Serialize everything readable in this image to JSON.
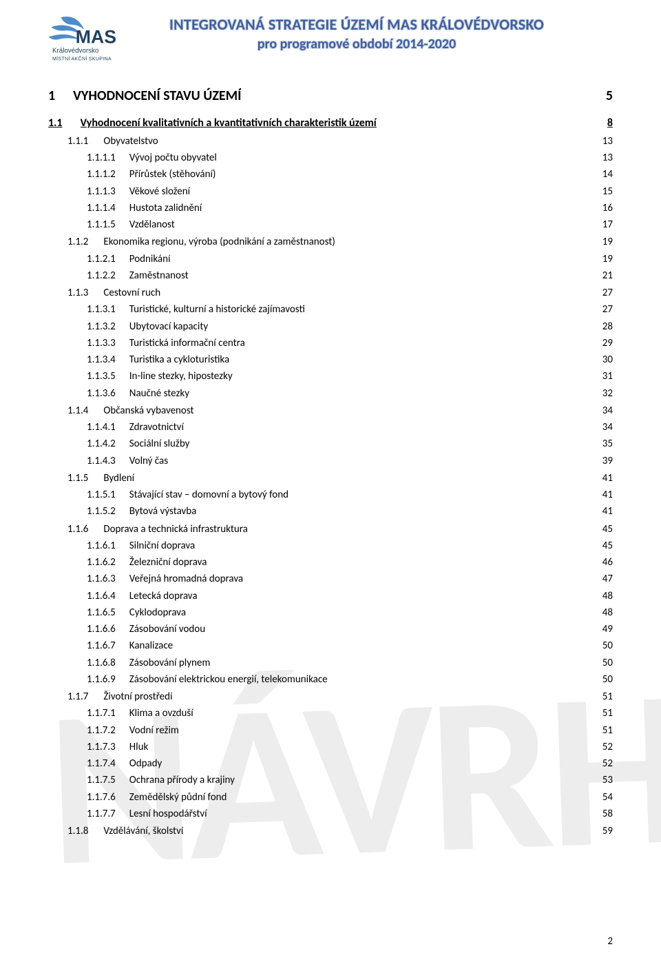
{
  "header": {
    "title_line1": "INTEGROVANÁ STRATEGIE ÚZEMÍ MAS KRÁLOVÉDVORSKO",
    "title_line2": "pro programové období 2014-2020",
    "logo_text_main": "MAS",
    "logo_text_sub1": "Královédvorsko",
    "logo_text_sub2": "MÍSTNÍ AKČNÍ SKUPINA",
    "title_color": "#3f5e9e",
    "logo_blue": "#4f8bc9",
    "logo_dark": "#20415f"
  },
  "watermark": "NÁVRH",
  "page_number": "2",
  "toc": [
    {
      "level": 1,
      "num": "1",
      "label": "VYHODNOCENÍ STAVU ÚZEMÍ",
      "page": "5"
    },
    {
      "level": 2,
      "num": "1.1",
      "label": "Vyhodnocení kvalitativních a kvantitativních charakteristik území",
      "page": "8"
    },
    {
      "level": 3,
      "num": "1.1.1",
      "label": "Obyvatelstvo",
      "page": "13"
    },
    {
      "level": 4,
      "num": "1.1.1.1",
      "label": "Vývoj počtu obyvatel",
      "page": "13"
    },
    {
      "level": 4,
      "num": "1.1.1.2",
      "label": "Přírůstek (stěhování)",
      "page": "14"
    },
    {
      "level": 4,
      "num": "1.1.1.3",
      "label": "Věkové složení",
      "page": "15"
    },
    {
      "level": 4,
      "num": "1.1.1.4",
      "label": "Hustota zalidnění",
      "page": "16"
    },
    {
      "level": 4,
      "num": "1.1.1.5",
      "label": "Vzdělanost",
      "page": "17"
    },
    {
      "level": 3,
      "num": "1.1.2",
      "label": "Ekonomika regionu, výroba (podnikání a zaměstnanost)",
      "page": "19"
    },
    {
      "level": 4,
      "num": "1.1.2.1",
      "label": "Podnikání",
      "page": "19"
    },
    {
      "level": 4,
      "num": "1.1.2.2",
      "label": "Zaměstnanost",
      "page": "21"
    },
    {
      "level": 3,
      "num": "1.1.3",
      "label": "Cestovní ruch",
      "page": "27"
    },
    {
      "level": 4,
      "num": "1.1.3.1",
      "label": "Turistické, kulturní a historické zajímavosti",
      "page": "27"
    },
    {
      "level": 4,
      "num": "1.1.3.2",
      "label": "Ubytovací kapacity",
      "page": "28"
    },
    {
      "level": 4,
      "num": "1.1.3.3",
      "label": "Turistická informační centra",
      "page": "29"
    },
    {
      "level": 4,
      "num": "1.1.3.4",
      "label": "Turistika a cykloturistika",
      "page": "30"
    },
    {
      "level": 4,
      "num": "1.1.3.5",
      "label": "In-line stezky, hipostezky",
      "page": "31"
    },
    {
      "level": 4,
      "num": "1.1.3.6",
      "label": "Naučné stezky",
      "page": "32"
    },
    {
      "level": 3,
      "num": "1.1.4",
      "label": "Občanská vybavenost",
      "page": "34"
    },
    {
      "level": 4,
      "num": "1.1.4.1",
      "label": "Zdravotnictví",
      "page": "34"
    },
    {
      "level": 4,
      "num": "1.1.4.2",
      "label": "Sociální služby",
      "page": "35"
    },
    {
      "level": 4,
      "num": "1.1.4.3",
      "label": "Volný čas",
      "page": "39"
    },
    {
      "level": 3,
      "num": "1.1.5",
      "label": "Bydlení",
      "page": "41"
    },
    {
      "level": 4,
      "num": "1.1.5.1",
      "label": "Stávající stav – domovní a bytový fond",
      "page": "41"
    },
    {
      "level": 4,
      "num": "1.1.5.2",
      "label": "Bytová výstavba",
      "page": "41"
    },
    {
      "level": 3,
      "num": "1.1.6",
      "label": "Doprava a technická infrastruktura",
      "page": "45"
    },
    {
      "level": 4,
      "num": "1.1.6.1",
      "label": "Silniční doprava",
      "page": "45"
    },
    {
      "level": 4,
      "num": "1.1.6.2",
      "label": "Železniční doprava",
      "page": "46"
    },
    {
      "level": 4,
      "num": "1.1.6.3",
      "label": "Veřejná hromadná doprava",
      "page": "47"
    },
    {
      "level": 4,
      "num": "1.1.6.4",
      "label": "Letecká doprava",
      "page": "48"
    },
    {
      "level": 4,
      "num": "1.1.6.5",
      "label": "Cyklodoprava",
      "page": "48"
    },
    {
      "level": 4,
      "num": "1.1.6.6",
      "label": "Zásobování vodou",
      "page": "49"
    },
    {
      "level": 4,
      "num": "1.1.6.7",
      "label": "Kanalizace",
      "page": "50"
    },
    {
      "level": 4,
      "num": "1.1.6.8",
      "label": "Zásobování plynem",
      "page": "50"
    },
    {
      "level": 4,
      "num": "1.1.6.9",
      "label": "Zásobování elektrickou energií, telekomunikace",
      "page": "50"
    },
    {
      "level": 3,
      "num": "1.1.7",
      "label": "Životní prostředí",
      "page": "51"
    },
    {
      "level": 4,
      "num": "1.1.7.1",
      "label": "Klima a ovzduší",
      "page": "51"
    },
    {
      "level": 4,
      "num": "1.1.7.2",
      "label": "Vodní režim",
      "page": "51"
    },
    {
      "level": 4,
      "num": "1.1.7.3",
      "label": "Hluk",
      "page": "52"
    },
    {
      "level": 4,
      "num": "1.1.7.4",
      "label": "Odpady",
      "page": "52"
    },
    {
      "level": 4,
      "num": "1.1.7.5",
      "label": "Ochrana přírody a krajiny",
      "page": "53"
    },
    {
      "level": 4,
      "num": "1.1.7.6",
      "label": "Zemědělský půdní fond",
      "page": "54"
    },
    {
      "level": 4,
      "num": "1.1.7.7",
      "label": "Lesní hospodářství",
      "page": "58"
    },
    {
      "level": 3,
      "num": "1.1.8",
      "label": "Vzdělávání, školství",
      "page": "59"
    }
  ]
}
